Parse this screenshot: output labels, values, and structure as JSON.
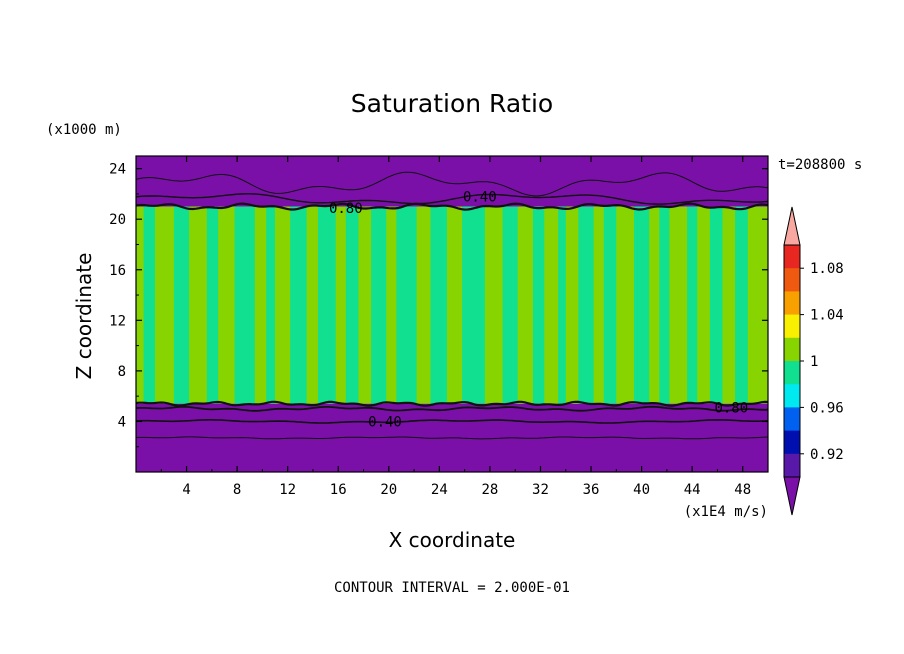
{
  "chart_data": {
    "type": "heatmap",
    "title": "Saturation Ratio",
    "xlabel": "X coordinate",
    "ylabel": "Z coordinate",
    "x_unit": "(x1E4 m/s)",
    "y_unit": "(x1000 m)",
    "time_label": "t=208800 s",
    "footer": "CONTOUR INTERVAL = 2.000E-01",
    "xlim": [
      0,
      50
    ],
    "ylim": [
      0,
      25
    ],
    "x_ticks": [
      "4",
      "8",
      "12",
      "16",
      "20",
      "24",
      "28",
      "32",
      "36",
      "40",
      "44",
      "48"
    ],
    "y_ticks": [
      "4",
      "8",
      "12",
      "16",
      "20",
      "24"
    ],
    "x_tick_values": [
      4,
      8,
      12,
      16,
      20,
      24,
      28,
      32,
      36,
      40,
      44,
      48
    ],
    "y_tick_values": [
      4,
      8,
      12,
      16,
      20,
      24
    ],
    "colorbar": {
      "labels": [
        "1.08",
        "1.04",
        "1",
        "0.96",
        "0.92"
      ],
      "label_values": [
        1.08,
        1.04,
        1.0,
        0.96,
        0.92
      ],
      "colors": [
        "#f8a8a0",
        "#e82820",
        "#f05a10",
        "#f8a000",
        "#f8f000",
        "#88d400",
        "#10e090",
        "#00e8f0",
        "#0060f0",
        "#0010b0",
        "#5818a8",
        "#7a10a8"
      ]
    },
    "contour_labels": [
      {
        "text": "0.40",
        "x": 27.2,
        "y": 21.8
      },
      {
        "text": "0.80",
        "x": 16.6,
        "y": 20.9
      },
      {
        "text": "0.40",
        "x": 19.7,
        "y": 4.0
      },
      {
        "text": "0.80",
        "x": 47.1,
        "y": 5.1
      }
    ],
    "regions": {
      "upper_dry_layer": {
        "z_range": [
          21,
          25
        ],
        "value": "< 0.40",
        "color": "#7a10a8"
      },
      "cloud_layer": {
        "z_range": [
          5.4,
          21
        ],
        "values": "0.98 - 1.02",
        "colors": [
          "#88d400",
          "#10e090"
        ]
      },
      "lower_dry_layer": {
        "z_range": [
          0,
          5.4
        ],
        "value": "< 0.40",
        "color": "#7a10a8"
      }
    },
    "bands_x": [
      0,
      0.6,
      1.5,
      3.0,
      4.2,
      5.6,
      6.5,
      7.8,
      9.4,
      10.3,
      11.0,
      12.2,
      13.5,
      14.4,
      15.8,
      16.6,
      17.6,
      18.6,
      19.8,
      20.6,
      22.2,
      23.3,
      24.6,
      25.8,
      27.6,
      29.0,
      30.2,
      31.4,
      32.3,
      33.4,
      34.0,
      35.0,
      36.2,
      37.0,
      38.0,
      39.4,
      40.6,
      41.4,
      42.2,
      43.6,
      44.4,
      45.4,
      46.4,
      47.4,
      48.4,
      50
    ],
    "bands_color": [
      "#88d400",
      "#10e090",
      "#88d400",
      "#10e090",
      "#88d400",
      "#10e090",
      "#88d400",
      "#10e090",
      "#88d400",
      "#10e090",
      "#88d400",
      "#10e090",
      "#88d400",
      "#10e090",
      "#88d400",
      "#10e090",
      "#88d400",
      "#10e090",
      "#88d400",
      "#10e090",
      "#88d400",
      "#10e090",
      "#88d400",
      "#10e090",
      "#88d400",
      "#10e090",
      "#88d400",
      "#10e090",
      "#88d400",
      "#10e090",
      "#88d400",
      "#10e090",
      "#88d400",
      "#10e090",
      "#88d400",
      "#10e090",
      "#88d400",
      "#10e090",
      "#88d400",
      "#10e090",
      "#88d400",
      "#10e090",
      "#88d400",
      "#10e090",
      "#88d400"
    ]
  }
}
